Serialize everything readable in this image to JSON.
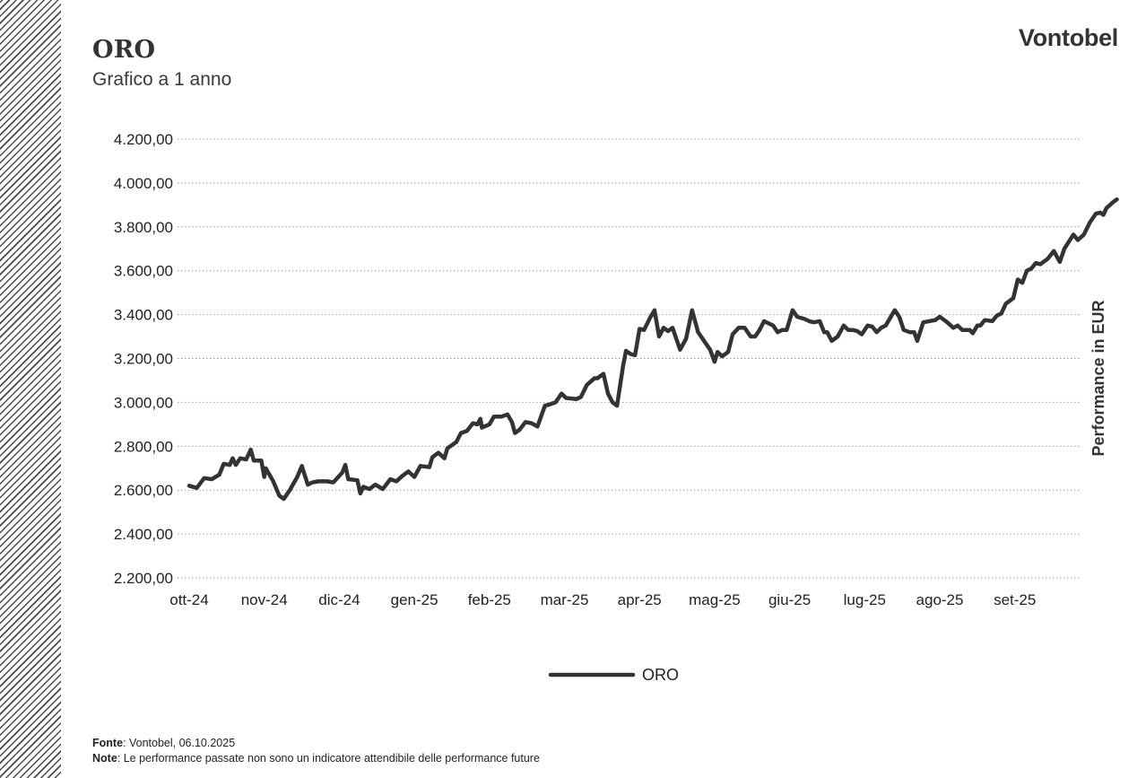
{
  "header": {
    "title": "ORO",
    "subtitle": "Grafico a 1 anno",
    "brand": "Vontobel"
  },
  "footer": {
    "source_label": "Fonte",
    "source_text": ": Vontobel, 06.10.2025",
    "note_label": "Note",
    "note_text": ": Le performance passate non sono un indicatore attendibile delle performance future"
  },
  "colors": {
    "series": "#333333",
    "grid": "#9a9a9a",
    "text": "#222222"
  },
  "chart_data": {
    "type": "line",
    "title": "ORO",
    "subtitle": "Grafico a 1 anno",
    "ylabel": "Performance in EUR",
    "ylabel_position": "right",
    "ylim": [
      2200,
      4200
    ],
    "yticks": [
      "2.200,00",
      "2.400,00",
      "2.600,00",
      "2.800,00",
      "3.000,00",
      "3.200,00",
      "3.400,00",
      "3.600,00",
      "3.800,00",
      "4.000,00",
      "4.200,00"
    ],
    "xticks": [
      "ott-24",
      "nov-24",
      "dic-24",
      "gen-25",
      "feb-25",
      "mar-25",
      "apr-25",
      "mag-25",
      "giu-25",
      "lug-25",
      "ago-25",
      "set-25"
    ],
    "grid": "horizontal dotted",
    "legend": "bottom-center",
    "series": [
      {
        "name": "ORO",
        "points": [
          [
            0.0,
            2620
          ],
          [
            0.25,
            2610
          ],
          [
            0.5,
            2655
          ],
          [
            0.75,
            2650
          ],
          [
            1.0,
            2670
          ],
          [
            1.15,
            2720
          ],
          [
            1.35,
            2715
          ],
          [
            1.45,
            2745
          ],
          [
            1.55,
            2715
          ],
          [
            1.7,
            2745
          ],
          [
            1.9,
            2740
          ],
          [
            2.05,
            2785
          ],
          [
            2.15,
            2735
          ],
          [
            2.4,
            2735
          ],
          [
            2.5,
            2660
          ],
          [
            2.55,
            2700
          ],
          [
            2.8,
            2640
          ],
          [
            3.0,
            2575
          ],
          [
            3.15,
            2560
          ],
          [
            3.35,
            2600
          ],
          [
            3.6,
            2660
          ],
          [
            3.75,
            2710
          ],
          [
            3.95,
            2625
          ],
          [
            4.1,
            2635
          ],
          [
            4.3,
            2640
          ],
          [
            4.6,
            2640
          ],
          [
            4.8,
            2635
          ],
          [
            5.1,
            2680
          ],
          [
            5.2,
            2715
          ],
          [
            5.3,
            2650
          ],
          [
            5.6,
            2645
          ],
          [
            5.7,
            2585
          ],
          [
            5.8,
            2615
          ],
          [
            6.0,
            2605
          ],
          [
            6.2,
            2625
          ],
          [
            6.45,
            2605
          ],
          [
            6.7,
            2650
          ],
          [
            6.9,
            2640
          ],
          [
            7.1,
            2665
          ],
          [
            7.3,
            2685
          ],
          [
            7.5,
            2660
          ],
          [
            7.7,
            2710
          ],
          [
            8.0,
            2705
          ],
          [
            8.1,
            2750
          ],
          [
            8.3,
            2770
          ],
          [
            8.5,
            2745
          ],
          [
            8.6,
            2790
          ],
          [
            8.9,
            2820
          ],
          [
            9.05,
            2860
          ],
          [
            9.25,
            2870
          ],
          [
            9.45,
            2905
          ],
          [
            9.6,
            2900
          ],
          [
            9.7,
            2925
          ],
          [
            9.75,
            2885
          ],
          [
            10.0,
            2900
          ],
          [
            10.15,
            2935
          ],
          [
            10.4,
            2935
          ],
          [
            10.6,
            2945
          ],
          [
            10.75,
            2910
          ],
          [
            10.85,
            2860
          ],
          [
            11.0,
            2875
          ],
          [
            11.2,
            2910
          ],
          [
            11.4,
            2905
          ],
          [
            11.6,
            2890
          ],
          [
            11.85,
            2985
          ],
          [
            12.0,
            2990
          ],
          [
            12.2,
            3000
          ],
          [
            12.4,
            3040
          ],
          [
            12.55,
            3020
          ],
          [
            12.9,
            3015
          ],
          [
            13.05,
            3025
          ],
          [
            13.25,
            3080
          ],
          [
            13.5,
            3110
          ],
          [
            13.6,
            3110
          ],
          [
            13.8,
            3130
          ],
          [
            13.95,
            3040
          ],
          [
            14.1,
            3000
          ],
          [
            14.25,
            2985
          ],
          [
            14.45,
            3165
          ],
          [
            14.55,
            3235
          ],
          [
            14.7,
            3220
          ],
          [
            14.85,
            3215
          ],
          [
            15.0,
            3335
          ],
          [
            15.15,
            3330
          ],
          [
            15.35,
            3385
          ],
          [
            15.5,
            3420
          ],
          [
            15.65,
            3300
          ],
          [
            15.8,
            3340
          ],
          [
            15.95,
            3325
          ],
          [
            16.1,
            3340
          ],
          [
            16.35,
            3240
          ],
          [
            16.55,
            3290
          ],
          [
            16.75,
            3420
          ],
          [
            16.95,
            3320
          ],
          [
            17.05,
            3300
          ],
          [
            17.35,
            3240
          ],
          [
            17.5,
            3185
          ],
          [
            17.6,
            3230
          ],
          [
            17.75,
            3210
          ],
          [
            17.95,
            3230
          ],
          [
            18.1,
            3310
          ],
          [
            18.3,
            3340
          ],
          [
            18.5,
            3340
          ],
          [
            18.7,
            3300
          ],
          [
            18.85,
            3300
          ],
          [
            19.0,
            3330
          ],
          [
            19.15,
            3370
          ],
          [
            19.3,
            3360
          ],
          [
            19.45,
            3350
          ],
          [
            19.6,
            3320
          ],
          [
            19.75,
            3330
          ],
          [
            19.9,
            3330
          ],
          [
            20.1,
            3420
          ],
          [
            20.25,
            3390
          ],
          [
            20.5,
            3380
          ],
          [
            20.65,
            3370
          ],
          [
            20.8,
            3365
          ],
          [
            21.0,
            3370
          ],
          [
            21.15,
            3320
          ],
          [
            21.25,
            3320
          ],
          [
            21.4,
            3280
          ],
          [
            21.6,
            3300
          ],
          [
            21.8,
            3350
          ],
          [
            21.95,
            3330
          ],
          [
            22.1,
            3330
          ],
          [
            22.25,
            3325
          ],
          [
            22.4,
            3310
          ],
          [
            22.6,
            3350
          ],
          [
            22.75,
            3345
          ],
          [
            22.9,
            3320
          ],
          [
            23.05,
            3340
          ],
          [
            23.2,
            3350
          ],
          [
            23.5,
            3420
          ],
          [
            23.65,
            3390
          ],
          [
            23.8,
            3330
          ],
          [
            24.0,
            3320
          ],
          [
            24.15,
            3320
          ],
          [
            24.25,
            3280
          ],
          [
            24.45,
            3365
          ],
          [
            24.65,
            3370
          ],
          [
            24.85,
            3375
          ],
          [
            25.0,
            3390
          ],
          [
            25.25,
            3365
          ],
          [
            25.45,
            3340
          ],
          [
            25.6,
            3350
          ],
          [
            25.75,
            3330
          ],
          [
            26.0,
            3330
          ],
          [
            26.1,
            3315
          ],
          [
            26.25,
            3350
          ],
          [
            26.35,
            3350
          ],
          [
            26.5,
            3375
          ],
          [
            26.75,
            3370
          ],
          [
            26.9,
            3395
          ],
          [
            27.05,
            3405
          ],
          [
            27.2,
            3450
          ],
          [
            27.45,
            3475
          ],
          [
            27.6,
            3560
          ],
          [
            27.75,
            3545
          ],
          [
            27.9,
            3600
          ],
          [
            28.05,
            3610
          ],
          [
            28.2,
            3635
          ],
          [
            28.35,
            3630
          ],
          [
            28.6,
            3655
          ],
          [
            28.8,
            3690
          ],
          [
            29.0,
            3640
          ],
          [
            29.15,
            3700
          ],
          [
            29.45,
            3765
          ],
          [
            29.6,
            3740
          ],
          [
            29.8,
            3765
          ],
          [
            30.0,
            3820
          ],
          [
            30.2,
            3860
          ],
          [
            30.35,
            3865
          ],
          [
            30.45,
            3855
          ],
          [
            30.55,
            3885
          ],
          [
            30.75,
            3910
          ],
          [
            30.9,
            3925
          ]
        ]
      }
    ]
  }
}
